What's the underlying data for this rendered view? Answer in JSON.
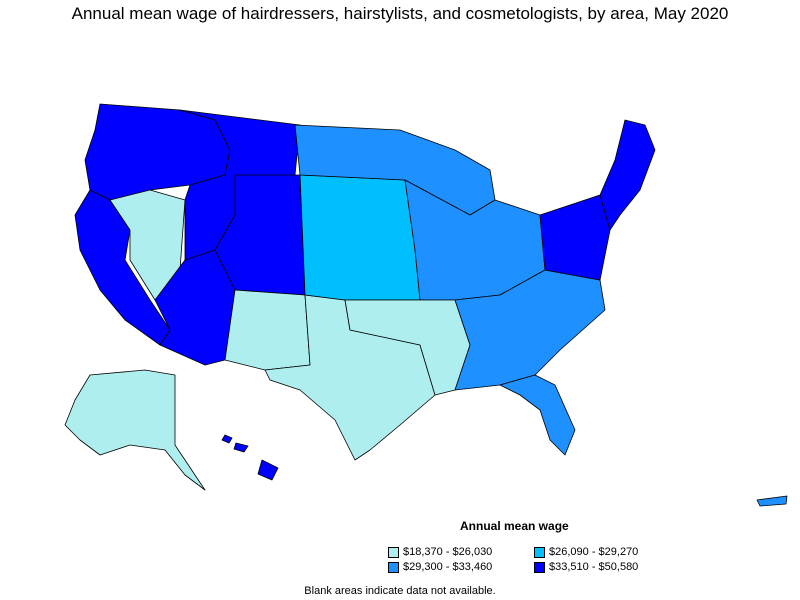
{
  "title": "Annual mean wage of hairdressers, hairstylists, and cosmetologists, by area, May 2020",
  "legend": {
    "title": "Annual mean wage",
    "items": [
      {
        "label": "$18,370 - $26,030",
        "color": "#aeeeee"
      },
      {
        "label": "$26,090 - $29,270",
        "color": "#00bfff"
      },
      {
        "label": "$29,300 - $33,460",
        "color": "#1e90ff"
      },
      {
        "label": "$33,510 - $50,580",
        "color": "#0000ff"
      }
    ]
  },
  "footnote": "Blank areas indicate data not available.",
  "map": {
    "outline_color": "#000000",
    "no_data_color": "#ffffff",
    "regions": [
      {
        "name": "pacific-northwest",
        "category": 3
      },
      {
        "name": "california-coast",
        "category": 3
      },
      {
        "name": "nevada",
        "category": 0
      },
      {
        "name": "mountain-west",
        "category": 3
      },
      {
        "name": "colorado-wyoming",
        "category": 3
      },
      {
        "name": "southwest-arizona",
        "category": 3
      },
      {
        "name": "new-mexico",
        "category": 0
      },
      {
        "name": "texas",
        "category": 0
      },
      {
        "name": "great-plains",
        "category": 1
      },
      {
        "name": "upper-midwest",
        "category": 2
      },
      {
        "name": "midwest",
        "category": 2
      },
      {
        "name": "south-central",
        "category": 0
      },
      {
        "name": "southeast",
        "category": 2
      },
      {
        "name": "florida",
        "category": 2
      },
      {
        "name": "mid-atlantic",
        "category": 3
      },
      {
        "name": "new-england",
        "category": 3
      },
      {
        "name": "alaska",
        "category": 0
      },
      {
        "name": "hawaii",
        "category": 3
      },
      {
        "name": "puerto-rico",
        "category": 2
      }
    ]
  }
}
